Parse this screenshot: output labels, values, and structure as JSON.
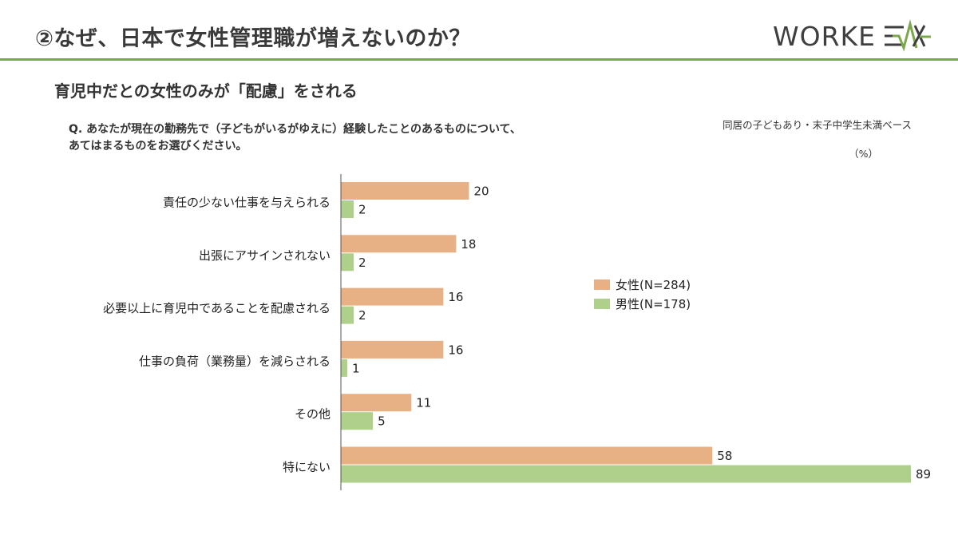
{
  "header": {
    "title": "②なぜ、日本で女性管理職が増えないのか？",
    "logo_text": "WORKE"
  },
  "subtitle": "育児中だとの女性のみが「配慮」をされる",
  "question": {
    "line1": "Q. あなたが現在の勤務先で（子どもがいるがゆえに）経験したことのあるものについて、",
    "line2": "あてはまるものをお選びください。"
  },
  "base_note": "同居の子どもあり・末子中学生未満ベース",
  "unit_note": "（%）",
  "legend": {
    "female": "女性(N=284)",
    "male": "男性(N=178)"
  },
  "colors": {
    "female": "#e8b185",
    "male": "#afd08a",
    "accent": "#7aa84b",
    "axis": "#555555"
  },
  "chart_data": {
    "type": "bar",
    "orientation": "horizontal",
    "categories": [
      "責任の少ない仕事を与えられる",
      "出張にアサインされない",
      "必要以上に育児中であることを配慮される",
      "仕事の負荷（業務量）を減らされる",
      "その他",
      "特にない"
    ],
    "series": [
      {
        "name": "女性(N=284)",
        "values": [
          20,
          18,
          16,
          16,
          11,
          58
        ]
      },
      {
        "name": "男性(N=178)",
        "values": [
          2,
          2,
          2,
          1,
          5,
          89
        ]
      }
    ],
    "unit": "%",
    "xlim": [
      0,
      89
    ],
    "legend_position": "right"
  }
}
